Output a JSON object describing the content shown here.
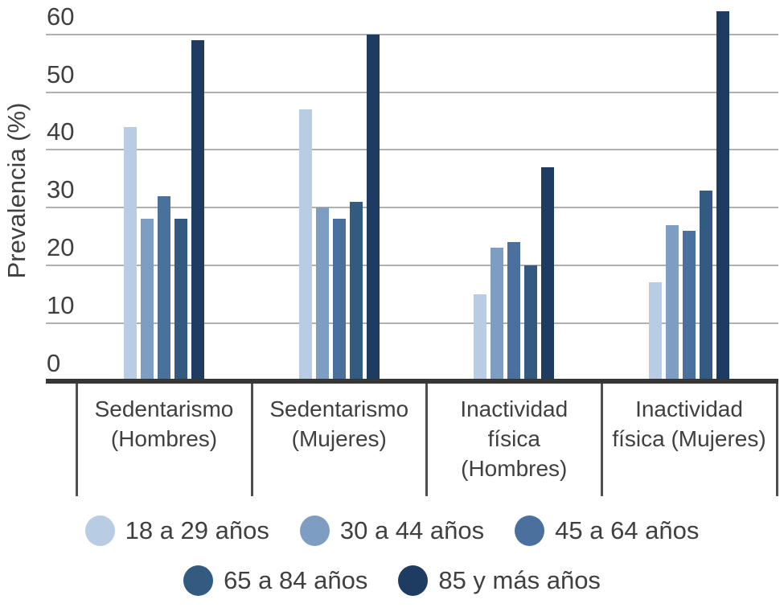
{
  "chart_data": {
    "type": "bar",
    "title": "",
    "xlabel": "",
    "ylabel": "Prevalencia (%)",
    "ylim": [
      0,
      60
    ],
    "yticks": [
      0,
      10,
      20,
      30,
      40,
      50,
      60
    ],
    "grid": true,
    "legend_position": "bottom",
    "categories": [
      [
        "Sedentarismo",
        "(Hombres)"
      ],
      [
        "Sedentarismo",
        "(Mujeres)"
      ],
      [
        "Inactividad",
        "física",
        "(Hombres)"
      ],
      [
        "Inactividad",
        "física (Mujeres)"
      ]
    ],
    "series": [
      {
        "name": "18 a 29 años",
        "color": "#b8cce4",
        "values": [
          44,
          47,
          15,
          17
        ]
      },
      {
        "name": "30 a 44 años",
        "color": "#7e9dc3",
        "values": [
          28,
          30,
          23,
          27
        ]
      },
      {
        "name": "45 a 64 años",
        "color": "#4a719e",
        "values": [
          32,
          28,
          24,
          26
        ]
      },
      {
        "name": "65 a 84 años",
        "color": "#335a80",
        "values": [
          28,
          31,
          20,
          33
        ]
      },
      {
        "name": "85 y más años",
        "color": "#1e3c61",
        "values": [
          59,
          60,
          37,
          64
        ]
      }
    ],
    "colors": {
      "text": "#404040",
      "gridline": "#b0b0b0",
      "axis": "#363636",
      "divider": "#4f4f4f",
      "background": "#ffffff"
    }
  }
}
